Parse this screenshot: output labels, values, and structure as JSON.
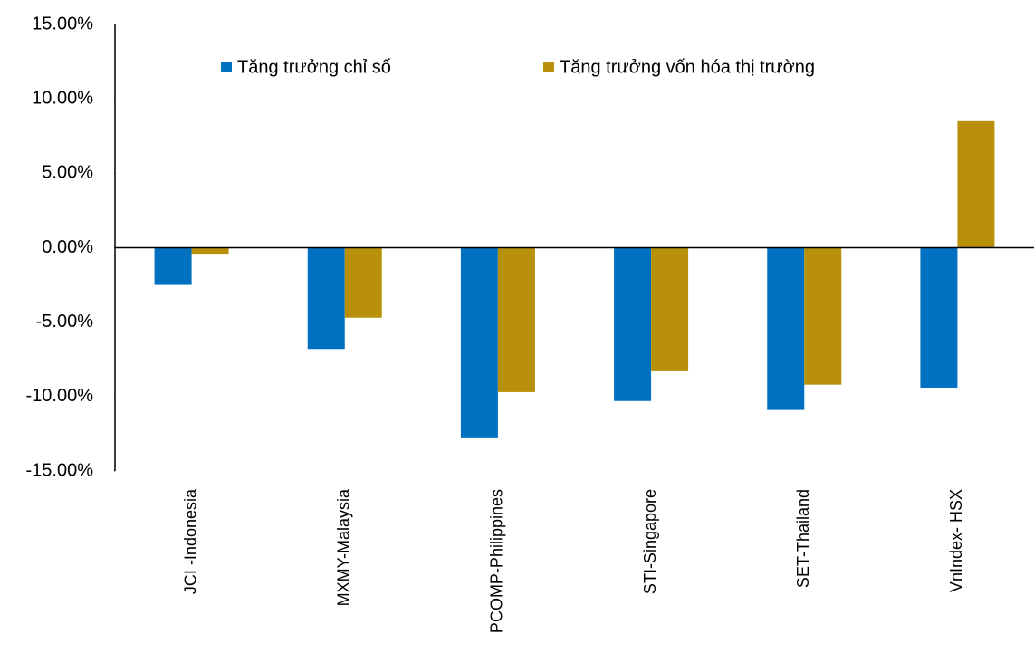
{
  "chart_data": {
    "type": "bar",
    "categories": [
      "JCI -Indonesia",
      "MXMY-Malaysia",
      "PCOMP-Philippines",
      "STI-Singapore",
      "SET-Thailand",
      "VnIndex- HSX"
    ],
    "series": [
      {
        "name": "Tăng trưởng chỉ số",
        "color": "#0070c0",
        "values": [
          -2.5,
          -6.8,
          -12.8,
          -10.3,
          -10.9,
          -9.4
        ]
      },
      {
        "name": "Tăng trưởng vốn hóa thị trường",
        "color": "#b8900a",
        "values": [
          -0.4,
          -4.7,
          -9.7,
          -8.3,
          -9.2,
          8.5
        ]
      }
    ],
    "ylim": [
      -15,
      15
    ],
    "yticks": [
      {
        "value": -15,
        "label": "-15.00%"
      },
      {
        "value": -10,
        "label": "-10.00%"
      },
      {
        "value": -5,
        "label": "-5.00%"
      },
      {
        "value": 0,
        "label": "0.00%"
      },
      {
        "value": 5,
        "label": "5.00%"
      },
      {
        "value": 10,
        "label": "10.00%"
      },
      {
        "value": 15,
        "label": "15.00%"
      }
    ],
    "grid": false
  }
}
